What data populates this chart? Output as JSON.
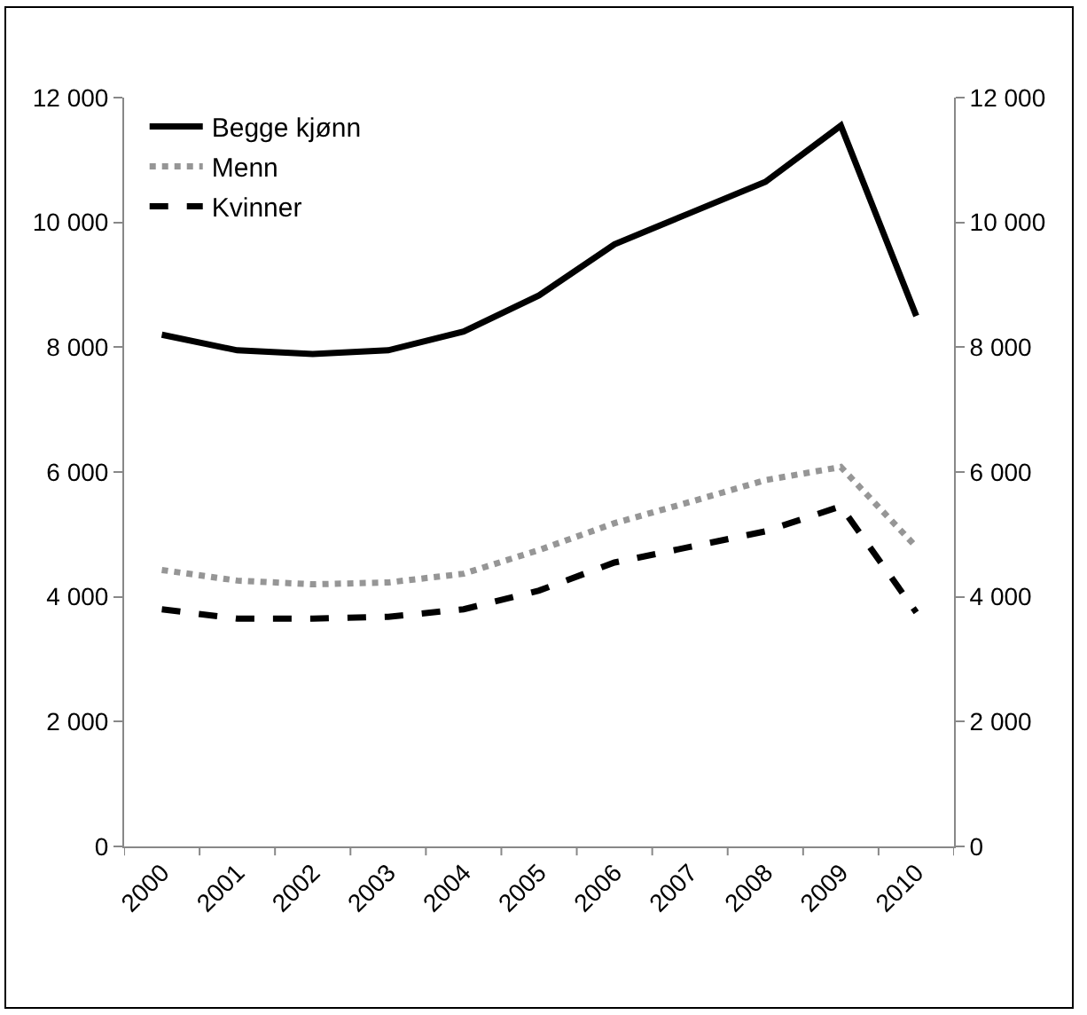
{
  "chart_data": {
    "type": "line",
    "categories": [
      "2000",
      "2001",
      "2002",
      "2003",
      "2004",
      "2005",
      "2006",
      "2007",
      "2008",
      "2009",
      "2010"
    ],
    "series": [
      {
        "name": "Begge kjønn",
        "color": "#000000",
        "line_style": "solid",
        "values": [
          8200,
          7950,
          7890,
          7950,
          8250,
          8830,
          9650,
          10150,
          10650,
          11550,
          8500
        ]
      },
      {
        "name": "Menn",
        "color": "#969696",
        "line_style": "dotted",
        "values": [
          4430,
          4260,
          4200,
          4230,
          4370,
          4750,
          5180,
          5520,
          5870,
          6080,
          4800
        ]
      },
      {
        "name": "Kvinner",
        "color": "#000000",
        "line_style": "dashed",
        "values": [
          3800,
          3650,
          3650,
          3680,
          3800,
          4100,
          4550,
          4800,
          5050,
          5450,
          3750
        ]
      }
    ],
    "ylim": [
      0,
      12000
    ],
    "yticks": [
      0,
      {
        "value": 2000,
        "label": "2 000"
      },
      {
        "value": 4000,
        "label": "4 000"
      },
      {
        "value": 6000,
        "label": "6 000"
      },
      {
        "value": 8000,
        "label": "8 000"
      },
      {
        "value": 10000,
        "label": "10 000"
      },
      {
        "value": 12000,
        "label": "12 000"
      }
    ],
    "y2lim": [
      0,
      12000
    ],
    "y2ticks": [
      0,
      {
        "value": 2000,
        "label": "2 000"
      },
      {
        "value": 4000,
        "label": "4 000"
      },
      {
        "value": 6000,
        "label": "6 000"
      },
      {
        "value": 8000,
        "label": "8 000"
      },
      {
        "value": 10000,
        "label": "10 000"
      },
      {
        "value": 12000,
        "label": "12 000"
      }
    ],
    "legend": "top left",
    "marker": "none"
  }
}
